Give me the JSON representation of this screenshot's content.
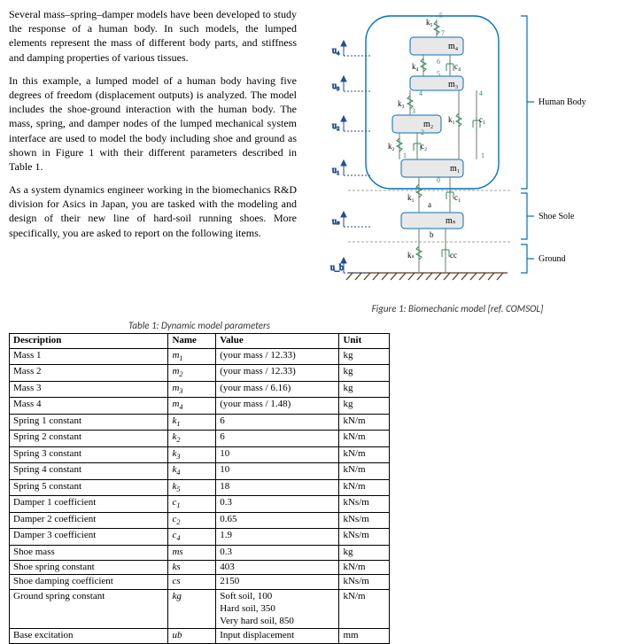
{
  "paragraphs": {
    "p1": "Several mass–spring–damper models have been developed to study the response of a human body. In such models, the lumped elements represent the mass of different body parts, and stiffness and damping properties of various tissues.",
    "p2": "In this example, a lumped model of a human body having five degrees of freedom (displacement outputs) is analyzed. The model includes the shoe-ground interaction with the human body. The mass, spring, and damper nodes of the lumped mechanical system interface are used to model the body including shoe and ground as shown in Figure 1 with their different parameters described in Table 1.",
    "p3": "As a system dynamics engineer working in the biomechanics R&D division for Asics in Japan, you are tasked with the modeling and design of their new line of hard-soil running shoes. More specifically, you are asked to report on the following items."
  },
  "table": {
    "caption": "Table 1: Dynamic model parameters",
    "columns": [
      "Description",
      "Name",
      "Value",
      "Unit"
    ],
    "rows": [
      {
        "desc": "Mass 1",
        "name": "m1",
        "value": "(your mass / 12.33)",
        "unit": "kg"
      },
      {
        "desc": "Mass 2",
        "name": "m2",
        "value": "(your mass / 12.33)",
        "unit": "kg"
      },
      {
        "desc": "Mass 3",
        "name": "m3",
        "value": "(your mass / 6.16)",
        "unit": "kg"
      },
      {
        "desc": "Mass 4",
        "name": "m4",
        "value": "(your mass / 1.48)",
        "unit": "kg"
      },
      {
        "desc": "Spring 1 constant",
        "name": "k1",
        "value": "6",
        "unit": "kN/m"
      },
      {
        "desc": "Spring 2 constant",
        "name": "k2",
        "value": "6",
        "unit": "kN/m"
      },
      {
        "desc": "Spring 3 constant",
        "name": "k3",
        "value": "10",
        "unit": "kN/m"
      },
      {
        "desc": "Spring 4 constant",
        "name": "k4",
        "value": "10",
        "unit": "kN/m"
      },
      {
        "desc": "Spring 5 constant",
        "name": "k5",
        "value": "18",
        "unit": "kN/m"
      },
      {
        "desc": "Damper 1 coefficient",
        "name": "c1",
        "value": "0.3",
        "unit": "kNs/m"
      },
      {
        "desc": "Damper 2 coefficient",
        "name": "c2",
        "value": "0.65",
        "unit": "kNs/m"
      },
      {
        "desc": "Damper 3 coefficient",
        "name": "c4",
        "value": "1.9",
        "unit": "kNs/m"
      },
      {
        "desc": "Shoe mass",
        "name": "ms",
        "value": "0.3",
        "unit": "kg"
      },
      {
        "desc": "Shoe spring constant",
        "name": "ks",
        "value": "403",
        "unit": "kN/m"
      },
      {
        "desc": "Shoe damping coefficient",
        "name": "cs",
        "value": "2150",
        "unit": "kNs/m"
      },
      {
        "desc": "Ground spring constant",
        "name": "kg",
        "value": "Soft soil, 100\nHard soil, 350\nVery hard soil, 850",
        "unit": "kN/m"
      },
      {
        "desc": "Base excitation",
        "name": "ub",
        "value": "Input displacement",
        "unit": "mm"
      }
    ]
  },
  "figure": {
    "caption": "Figure 1: Biomechanic model [ref. COMSOL]",
    "labels": {
      "human_body": "Human Body",
      "shoe_sole": "Shoe Sole",
      "ground": "Ground",
      "m1": "m₁",
      "m2": "m₂",
      "m3": "m₃",
      "m4": "m₄",
      "ms": "mₛ",
      "k1": "k₁",
      "k2": "k₂",
      "k3": "k₃",
      "k4": "k₄",
      "k5": "k₅",
      "ks": "kₛ",
      "kg": "kg",
      "c1": "c₁",
      "c2": "c₂",
      "c4": "c₄",
      "cs": "cₛ",
      "cc": "cc",
      "u1": "u₁",
      "u2": "u₂",
      "u3": "u₃",
      "u4": "u₄",
      "us": "uₛ",
      "ub": "u_b",
      "a": "a",
      "b": "b"
    },
    "nodes": {
      "n0": "0",
      "n1": "1",
      "n2": "2",
      "n3": "3",
      "n4": "4",
      "n5": "5",
      "n6": "6",
      "n7": "7"
    },
    "colors": {
      "mass_fill": "#e8e8e8",
      "mass_stroke": "#0072bd",
      "line": "#777777",
      "ground": "#5c3a1e",
      "node_green": "#2e8b57",
      "arrow_blue": "#1f4e99",
      "bracket": "#0072bd"
    }
  }
}
